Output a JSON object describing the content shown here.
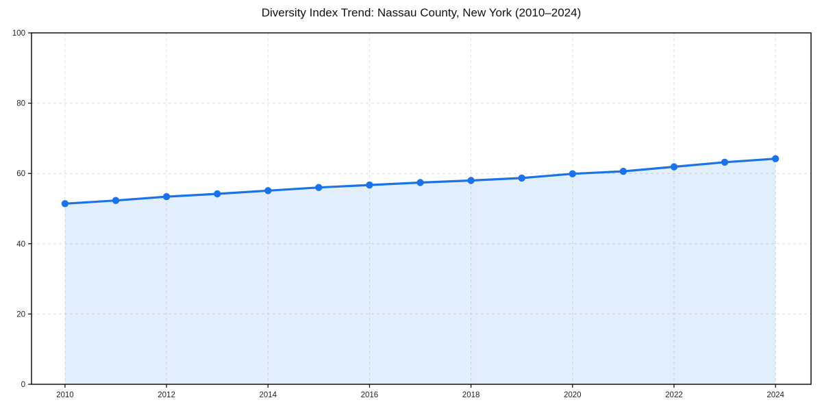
{
  "chart": {
    "title": "Diversity Index Trend: Nassau County, New York (2010–2024)"
  },
  "chart_data": {
    "type": "area",
    "title": "Diversity Index Trend: Nassau County, New York (2010–2024)",
    "x": [
      2010,
      2011,
      2012,
      2013,
      2014,
      2015,
      2016,
      2017,
      2018,
      2019,
      2020,
      2021,
      2022,
      2023,
      2024
    ],
    "series": [
      {
        "name": "Diversity Index",
        "values": [
          51.4,
          52.3,
          53.4,
          54.2,
          55.1,
          56.0,
          56.7,
          57.4,
          58.0,
          58.7,
          59.9,
          60.6,
          61.9,
          63.2,
          64.2
        ]
      }
    ],
    "xlabel": "",
    "ylabel": "",
    "xlim": [
      2009.34,
      2024.7
    ],
    "ylim": [
      0,
      100
    ],
    "xticks": [
      2010,
      2012,
      2014,
      2016,
      2018,
      2020,
      2022,
      2024
    ],
    "yticks": [
      0,
      20,
      40,
      60,
      80,
      100
    ],
    "grid": true,
    "grid_style": "dashed",
    "legend": "none",
    "marker": "circle",
    "colors": {
      "line": "#1a73e8",
      "marker": "#1a73e8",
      "fill": "#1a73e8",
      "fill_alpha": 0.12,
      "grid": "#dcdcdc",
      "axis": "#000000",
      "tick_label": "#222222",
      "title": "#111111",
      "background": "#ffffff"
    }
  }
}
